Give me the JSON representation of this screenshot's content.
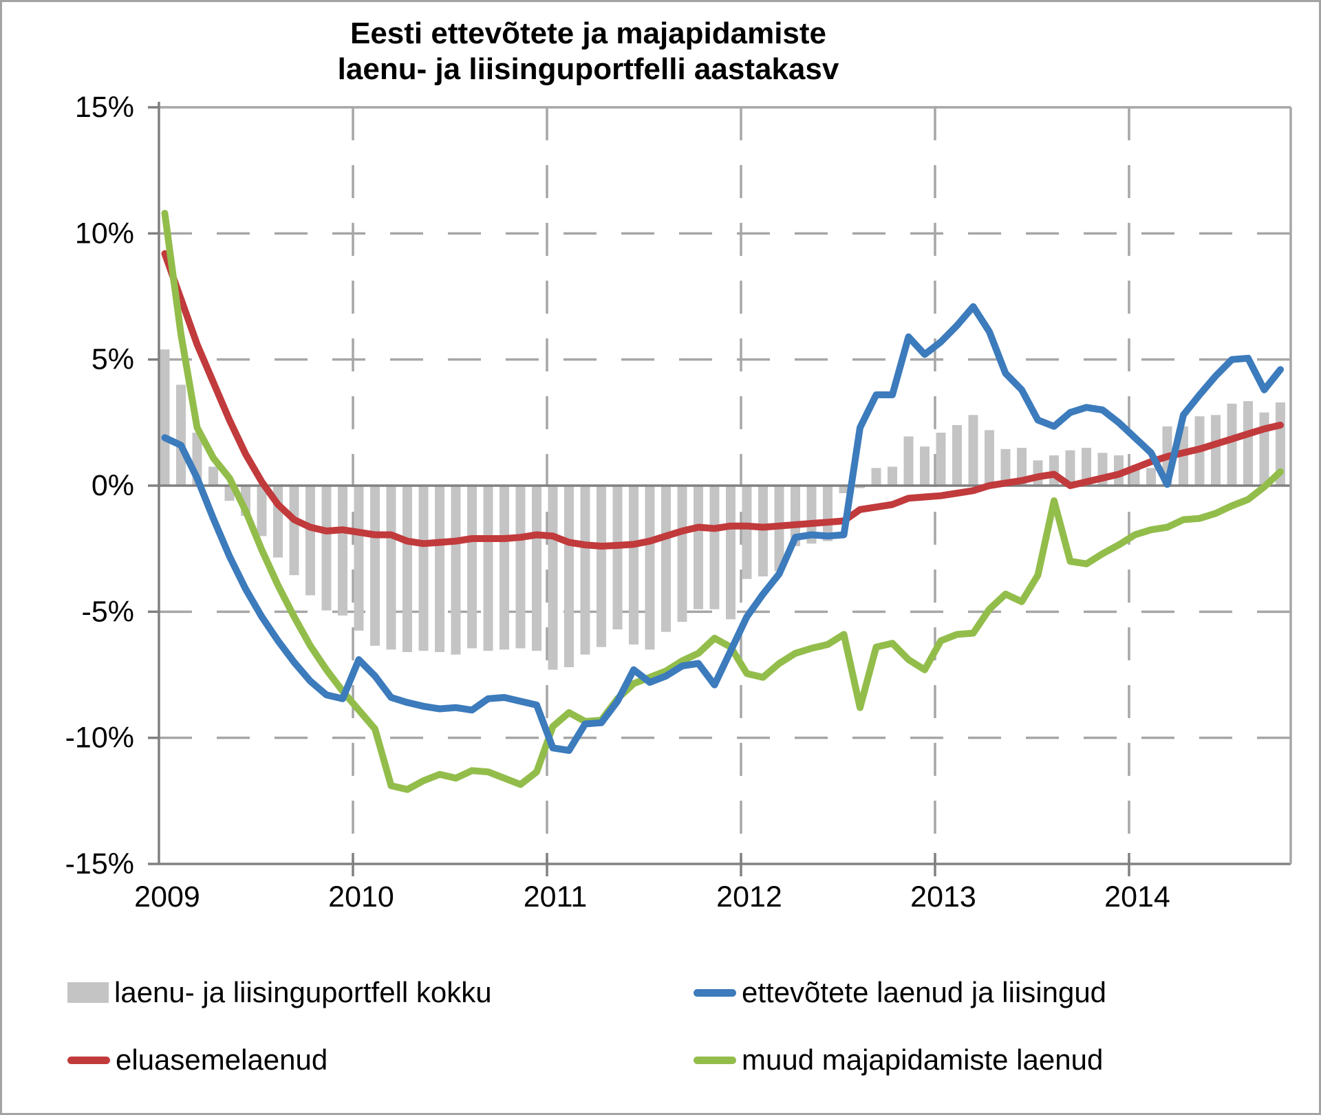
{
  "title": {
    "line1": "Eesti ettevõtete ja majapidamiste",
    "line2": "laenu- ja liisinguportfelli aastakasv"
  },
  "colors": {
    "bar_gray": "#c4c4c4",
    "line_blue": "#3c7bbc",
    "line_red": "#c13a3c",
    "line_green": "#93bd4b",
    "gridline": "#a6a6a6",
    "axis": "#808080",
    "text": "#000000",
    "frame_border": "#a3a3a3"
  },
  "legend": [
    {
      "label": "laenu- ja liisinguportfell kokku",
      "swatch": "bar",
      "color": "#c4c4c4"
    },
    {
      "label": "ettevõtete laenud ja liisingud",
      "swatch": "line",
      "color": "#3c7bbc"
    },
    {
      "label": "eluasemelaenud",
      "swatch": "line",
      "color": "#c13a3c"
    },
    {
      "label": "muud majapidamiste laenud",
      "swatch": "line",
      "color": "#93bd4b"
    }
  ],
  "chart_data": {
    "type": "combo-bar-line",
    "x_axis": {
      "frequency": "monthly",
      "start": "2009-01",
      "end": "2014-10",
      "tick_labels": [
        "2009",
        "2010",
        "2011",
        "2012",
        "2013",
        "2014"
      ]
    },
    "y_axis": {
      "min": -15,
      "max": 15,
      "step": 5,
      "unit": "%",
      "tick_labels": [
        "15%",
        "10%",
        "5%",
        "0%",
        "-5%",
        "-10%",
        "-15%"
      ]
    },
    "grid": "dashed",
    "legend_position": "bottom",
    "series": [
      {
        "name": "laenu- ja liisinguportfell kokku",
        "type": "bar",
        "color": "#c4c4c4",
        "values": [
          5.4,
          4.0,
          2.1,
          0.75,
          -0.6,
          -1.2,
          -2.0,
          -2.85,
          -3.55,
          -4.35,
          -4.95,
          -5.15,
          -5.75,
          -6.35,
          -6.5,
          -6.6,
          -6.55,
          -6.6,
          -6.7,
          -6.45,
          -6.55,
          -6.5,
          -6.45,
          -6.55,
          -7.3,
          -7.2,
          -6.7,
          -6.4,
          -5.7,
          -6.3,
          -6.5,
          -5.8,
          -5.4,
          -4.9,
          -4.9,
          -5.3,
          -3.7,
          -3.6,
          -3.4,
          -2.4,
          -2.3,
          -2.2,
          -0.3,
          -0.1,
          0.7,
          0.75,
          1.95,
          1.55,
          2.1,
          2.4,
          2.8,
          2.2,
          1.45,
          1.5,
          1.0,
          1.2,
          1.4,
          1.5,
          1.3,
          1.2,
          0.75,
          0.7,
          2.35,
          2.35,
          2.75,
          2.8,
          3.25,
          3.35,
          2.9,
          3.3
        ]
      },
      {
        "name": "ettevõtete laenud ja liisingud",
        "type": "line",
        "color": "#3c7bbc",
        "values": [
          1.9,
          1.6,
          0.3,
          -1.3,
          -2.8,
          -4.1,
          -5.2,
          -6.15,
          -7.0,
          -7.75,
          -8.3,
          -8.45,
          -6.9,
          -7.55,
          -8.4,
          -8.6,
          -8.75,
          -8.85,
          -8.8,
          -8.9,
          -8.45,
          -8.4,
          -8.55,
          -8.7,
          -10.4,
          -10.5,
          -9.45,
          -9.4,
          -8.55,
          -7.3,
          -7.8,
          -7.55,
          -7.15,
          -7.05,
          -7.9,
          -6.55,
          -5.2,
          -4.3,
          -3.5,
          -2.05,
          -1.95,
          -2.0,
          -1.95,
          2.3,
          3.6,
          3.6,
          5.9,
          5.2,
          5.7,
          6.35,
          7.1,
          6.1,
          4.45,
          3.8,
          2.6,
          2.35,
          2.9,
          3.1,
          3.0,
          2.5,
          1.9,
          1.3,
          0.05,
          2.8,
          3.6,
          4.35,
          5.0,
          5.05,
          3.8,
          4.6
        ]
      },
      {
        "name": "eluasemelaenud",
        "type": "line",
        "color": "#c13a3c",
        "values": [
          9.2,
          7.4,
          5.6,
          4.1,
          2.6,
          1.25,
          0.15,
          -0.75,
          -1.35,
          -1.65,
          -1.8,
          -1.75,
          -1.85,
          -1.95,
          -1.95,
          -2.2,
          -2.3,
          -2.25,
          -2.2,
          -2.1,
          -2.1,
          -2.1,
          -2.05,
          -1.95,
          -2.0,
          -2.25,
          -2.35,
          -2.4,
          -2.37,
          -2.33,
          -2.2,
          -2.0,
          -1.8,
          -1.65,
          -1.7,
          -1.6,
          -1.6,
          -1.65,
          -1.6,
          -1.55,
          -1.5,
          -1.45,
          -1.4,
          -0.95,
          -0.85,
          -0.75,
          -0.5,
          -0.45,
          -0.4,
          -0.3,
          -0.2,
          0.0,
          0.1,
          0.2,
          0.35,
          0.45,
          0.0,
          0.15,
          0.3,
          0.45,
          0.7,
          0.95,
          1.15,
          1.3,
          1.45,
          1.65,
          1.85,
          2.05,
          2.25,
          2.4
        ]
      },
      {
        "name": "muud majapidamiste laenud",
        "type": "line",
        "color": "#93bd4b",
        "values": [
          10.8,
          6.0,
          2.3,
          1.1,
          0.3,
          -1.0,
          -2.55,
          -3.95,
          -5.2,
          -6.35,
          -7.3,
          -8.15,
          -8.9,
          -9.65,
          -11.9,
          -12.05,
          -11.7,
          -11.45,
          -11.6,
          -11.3,
          -11.35,
          -11.6,
          -11.85,
          -11.35,
          -9.55,
          -9.0,
          -9.35,
          -9.3,
          -8.45,
          -7.85,
          -7.6,
          -7.35,
          -6.95,
          -6.65,
          -6.05,
          -6.4,
          -7.45,
          -7.6,
          -7.05,
          -6.65,
          -6.45,
          -6.3,
          -5.9,
          -8.8,
          -6.4,
          -6.25,
          -6.9,
          -7.3,
          -6.15,
          -5.9,
          -5.85,
          -4.9,
          -4.3,
          -4.6,
          -3.55,
          -0.6,
          -3.0,
          -3.1,
          -2.7,
          -2.35,
          -1.95,
          -1.75,
          -1.65,
          -1.35,
          -1.3,
          -1.1,
          -0.8,
          -0.55,
          -0.05,
          0.55
        ]
      }
    ]
  }
}
